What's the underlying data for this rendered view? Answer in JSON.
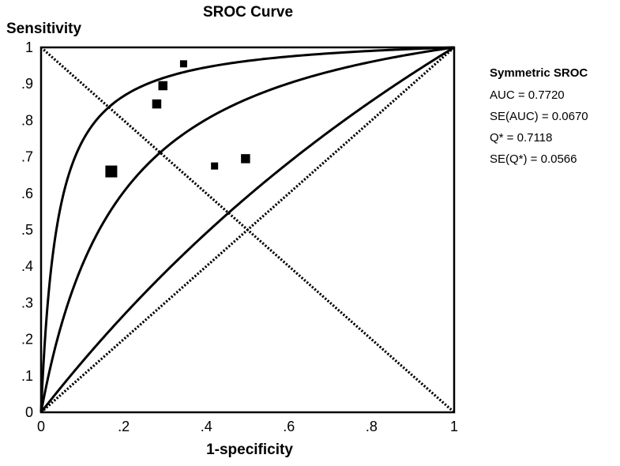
{
  "chart_data": {
    "type": "scatter",
    "title": "SROC Curve",
    "xlabel": "1-specificity",
    "ylabel": "Sensitivity",
    "xlim": [
      0,
      1
    ],
    "ylim": [
      0,
      1
    ],
    "x_ticks": [
      {
        "value": 0,
        "label": "0"
      },
      {
        "value": 0.2,
        "label": ".2"
      },
      {
        "value": 0.4,
        "label": ".4"
      },
      {
        "value": 0.6,
        "label": ".6"
      },
      {
        "value": 0.8,
        "label": ".8"
      },
      {
        "value": 1,
        "label": "1"
      }
    ],
    "y_ticks": [
      {
        "value": 0,
        "label": "0"
      },
      {
        "value": 0.1,
        "label": ".1"
      },
      {
        "value": 0.2,
        "label": ".2"
      },
      {
        "value": 0.3,
        "label": ".3"
      },
      {
        "value": 0.4,
        "label": ".4"
      },
      {
        "value": 0.5,
        "label": ".5"
      },
      {
        "value": 0.6,
        "label": ".6"
      },
      {
        "value": 0.7,
        "label": ".7"
      },
      {
        "value": 0.8,
        "label": ".8"
      },
      {
        "value": 0.9,
        "label": ".9"
      },
      {
        "value": 1,
        "label": "1"
      }
    ],
    "studies": [
      {
        "x": 0.17,
        "y": 0.66,
        "weight": 1.5
      },
      {
        "x": 0.28,
        "y": 0.845,
        "weight": 1.15
      },
      {
        "x": 0.295,
        "y": 0.895,
        "weight": 1.15
      },
      {
        "x": 0.345,
        "y": 0.955,
        "weight": 0.9
      },
      {
        "x": 0.42,
        "y": 0.675,
        "weight": 0.9
      },
      {
        "x": 0.495,
        "y": 0.695,
        "weight": 1.15
      }
    ],
    "reference_lines": [
      {
        "name": "chance-diagonal",
        "style": "dotted",
        "from": [
          0,
          0
        ],
        "to": [
          1,
          1
        ]
      },
      {
        "name": "q-star-line",
        "style": "dotted",
        "from": [
          0,
          1
        ],
        "to": [
          1,
          0
        ]
      }
    ],
    "curves": [
      {
        "name": "sroc-curve",
        "odds_ratio": 6.1
      },
      {
        "name": "upper-ci-curve",
        "odds_ratio": 26
      },
      {
        "name": "lower-ci-curve",
        "odds_ratio": 1.45
      }
    ],
    "legend": {
      "position": "right",
      "title": "Symmetric SROC",
      "items": [
        "AUC = 0.7720",
        "SE(AUC) = 0.0670",
        "Q* = 0.7118",
        "SE(Q*) = 0.0566"
      ]
    },
    "colors": {
      "ink": "#000000",
      "background": "#ffffff"
    }
  }
}
